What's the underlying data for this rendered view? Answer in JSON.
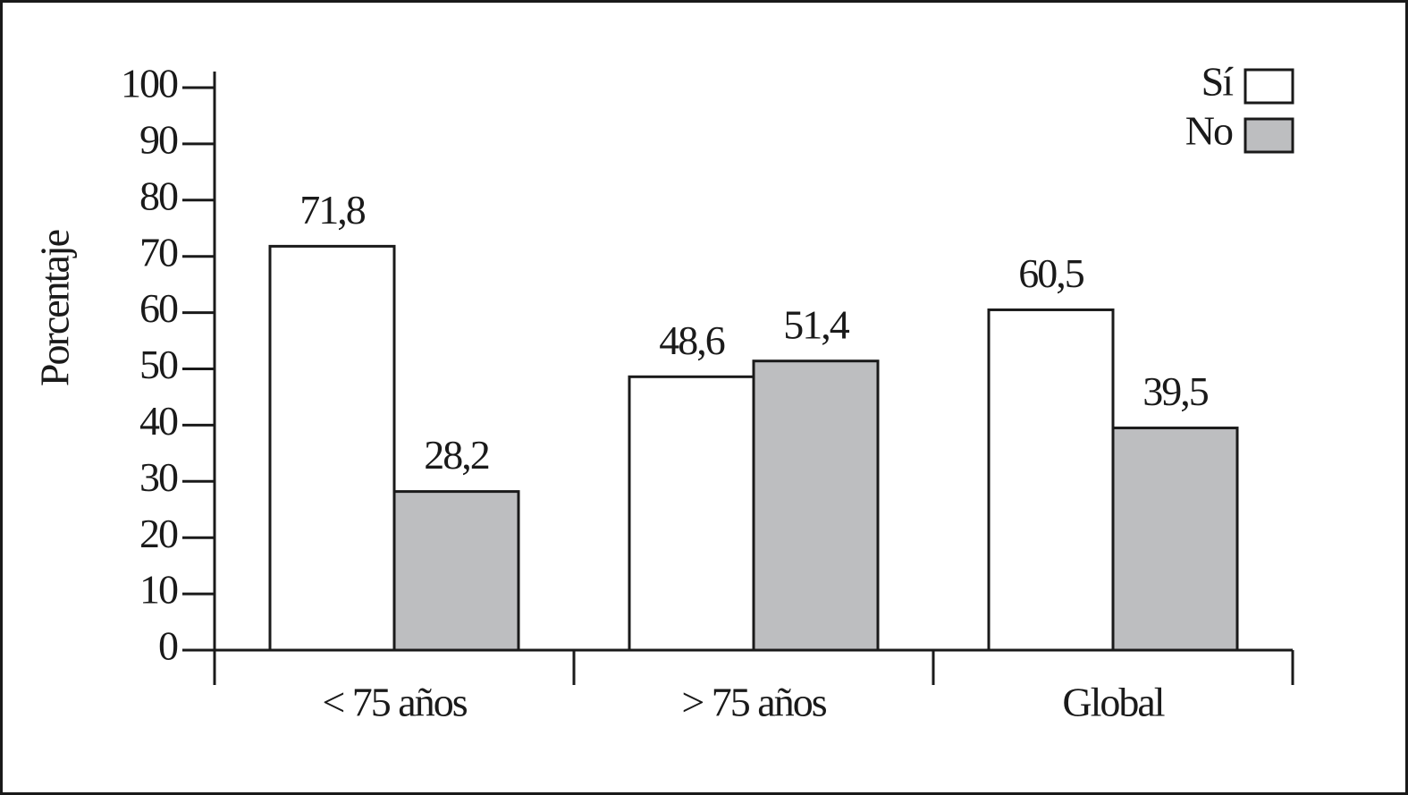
{
  "chart_data": {
    "type": "bar",
    "y_label": "Porcentaje",
    "categories": [
      "< 75 años",
      "> 75 años",
      "Global"
    ],
    "series": [
      {
        "name": "Sí",
        "color": "#ffffff",
        "values": [
          71.8,
          48.6,
          60.5
        ],
        "value_labels": [
          "71,8",
          "48,6",
          "60,5"
        ]
      },
      {
        "name": "No",
        "color": "#bdbec0",
        "values": [
          28.2,
          51.4,
          39.5
        ],
        "value_labels": [
          "28,2",
          "51,4",
          "39,5"
        ]
      }
    ],
    "ylim": [
      0,
      100
    ],
    "yticks": [
      0,
      10,
      20,
      30,
      40,
      50,
      60,
      70,
      80,
      90,
      100
    ],
    "legend": "top-right",
    "grid": false
  }
}
